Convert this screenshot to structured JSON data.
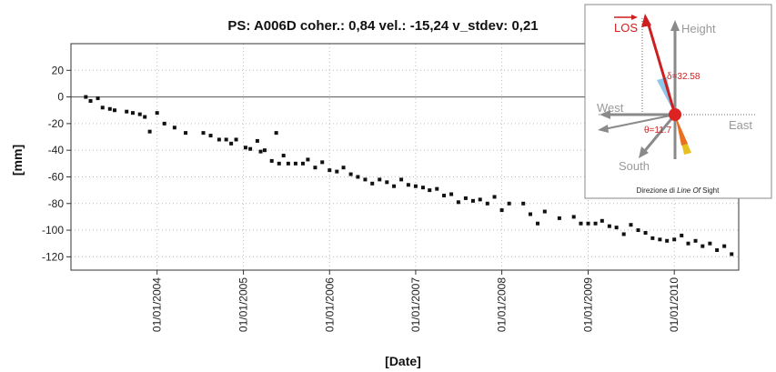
{
  "chart_data": {
    "type": "scatter",
    "title": "PS: A006D coher.: 0,84 vel.: -15,24 v_stdev: 0,21",
    "xlabel": "[Date]",
    "ylabel": "[mm]",
    "ylim": [
      -130,
      40
    ],
    "y_ticks": [
      20,
      0,
      -20,
      -40,
      -60,
      -80,
      -100,
      -120
    ],
    "x_tick_dates": [
      "2004-01-01",
      "2005-01-01",
      "2006-01-01",
      "2007-01-01",
      "2008-01-01",
      "2009-01-01",
      "2010-01-01"
    ],
    "x_tick_labels": [
      "01/01/2004",
      "01/01/2005",
      "01/01/2006",
      "01/01/2007",
      "01/01/2008",
      "01/01/2009",
      "01/01/2010"
    ],
    "xlim": [
      "2003-01-01",
      "2010-10-01"
    ],
    "grid": true,
    "zero_line": true,
    "marker_color": "#111111",
    "series": [
      {
        "points": [
          [
            "2003-03-05",
            0
          ],
          [
            "2003-03-25",
            -3
          ],
          [
            "2003-04-25",
            -1
          ],
          [
            "2003-05-15",
            -8
          ],
          [
            "2003-06-15",
            -9
          ],
          [
            "2003-07-05",
            -10
          ],
          [
            "2003-08-25",
            -11
          ],
          [
            "2003-09-20",
            -12
          ],
          [
            "2003-10-20",
            -13
          ],
          [
            "2003-11-10",
            -15
          ],
          [
            "2003-12-01",
            -26
          ],
          [
            "2004-01-01",
            -12
          ],
          [
            "2004-02-01",
            -20
          ],
          [
            "2004-03-15",
            -23
          ],
          [
            "2004-05-01",
            -27
          ],
          [
            "2004-07-15",
            -27
          ],
          [
            "2004-08-15",
            -29
          ],
          [
            "2004-09-20",
            -32
          ],
          [
            "2004-10-20",
            -32
          ],
          [
            "2004-11-10",
            -35
          ],
          [
            "2004-12-01",
            -32
          ],
          [
            "2005-01-10",
            -38
          ],
          [
            "2005-01-30",
            -39
          ],
          [
            "2005-03-01",
            -33
          ],
          [
            "2005-03-15",
            -41
          ],
          [
            "2005-04-01",
            -40
          ],
          [
            "2005-05-01",
            -48
          ],
          [
            "2005-05-20",
            -27
          ],
          [
            "2005-06-01",
            -50
          ],
          [
            "2005-06-20",
            -44
          ],
          [
            "2005-07-10",
            -50
          ],
          [
            "2005-08-10",
            -50
          ],
          [
            "2005-09-10",
            -50
          ],
          [
            "2005-10-01",
            -47
          ],
          [
            "2005-11-01",
            -53
          ],
          [
            "2005-12-01",
            -49
          ],
          [
            "2006-01-01",
            -55
          ],
          [
            "2006-02-01",
            -56
          ],
          [
            "2006-03-01",
            -53
          ],
          [
            "2006-04-01",
            -58
          ],
          [
            "2006-05-01",
            -60
          ],
          [
            "2006-06-01",
            -62
          ],
          [
            "2006-07-01",
            -65
          ],
          [
            "2006-08-01",
            -62
          ],
          [
            "2006-09-01",
            -64
          ],
          [
            "2006-10-01",
            -67
          ],
          [
            "2006-11-01",
            -62
          ],
          [
            "2006-12-01",
            -66
          ],
          [
            "2007-01-01",
            -67
          ],
          [
            "2007-02-01",
            -68
          ],
          [
            "2007-03-01",
            -70
          ],
          [
            "2007-04-01",
            -69
          ],
          [
            "2007-05-01",
            -74
          ],
          [
            "2007-06-01",
            -73
          ],
          [
            "2007-07-01",
            -79
          ],
          [
            "2007-08-01",
            -76
          ],
          [
            "2007-09-01",
            -78
          ],
          [
            "2007-10-01",
            -77
          ],
          [
            "2007-11-01",
            -80
          ],
          [
            "2007-12-01",
            -75
          ],
          [
            "2008-01-01",
            -85
          ],
          [
            "2008-02-01",
            -80
          ],
          [
            "2008-04-01",
            -80
          ],
          [
            "2008-05-01",
            -88
          ],
          [
            "2008-06-01",
            -95
          ],
          [
            "2008-07-01",
            -86
          ],
          [
            "2008-09-01",
            -91
          ],
          [
            "2008-11-01",
            -90
          ],
          [
            "2008-12-01",
            -95
          ],
          [
            "2009-01-01",
            -95
          ],
          [
            "2009-02-01",
            -95
          ],
          [
            "2009-03-01",
            -93
          ],
          [
            "2009-04-01",
            -97
          ],
          [
            "2009-05-01",
            -98
          ],
          [
            "2009-06-01",
            -103
          ],
          [
            "2009-07-01",
            -96
          ],
          [
            "2009-08-01",
            -100
          ],
          [
            "2009-09-01",
            -102
          ],
          [
            "2009-10-01",
            -106
          ],
          [
            "2009-11-01",
            -107
          ],
          [
            "2009-12-01",
            -108
          ],
          [
            "2010-01-01",
            -107
          ],
          [
            "2010-02-01",
            -104
          ],
          [
            "2010-03-01",
            -110
          ],
          [
            "2010-04-01",
            -108
          ],
          [
            "2010-05-01",
            -112
          ],
          [
            "2010-06-01",
            -110
          ],
          [
            "2010-07-01",
            -115
          ],
          [
            "2010-08-01",
            -112
          ],
          [
            "2010-09-01",
            -118
          ]
        ]
      }
    ]
  },
  "inset": {
    "los_label": "LOS",
    "height_label": "Height",
    "west_label": "West",
    "east_label": "East",
    "south_label": "South",
    "delta_label": "δ=32.58",
    "theta_label": "θ=11.7",
    "caption_prefix": "Direzione di ",
    "caption_italic": "Line Of",
    "caption_suffix": " Sight",
    "colors": {
      "los": "#cc1f1f",
      "axes": "#8a8a8a",
      "dot": "#dd2222"
    }
  }
}
